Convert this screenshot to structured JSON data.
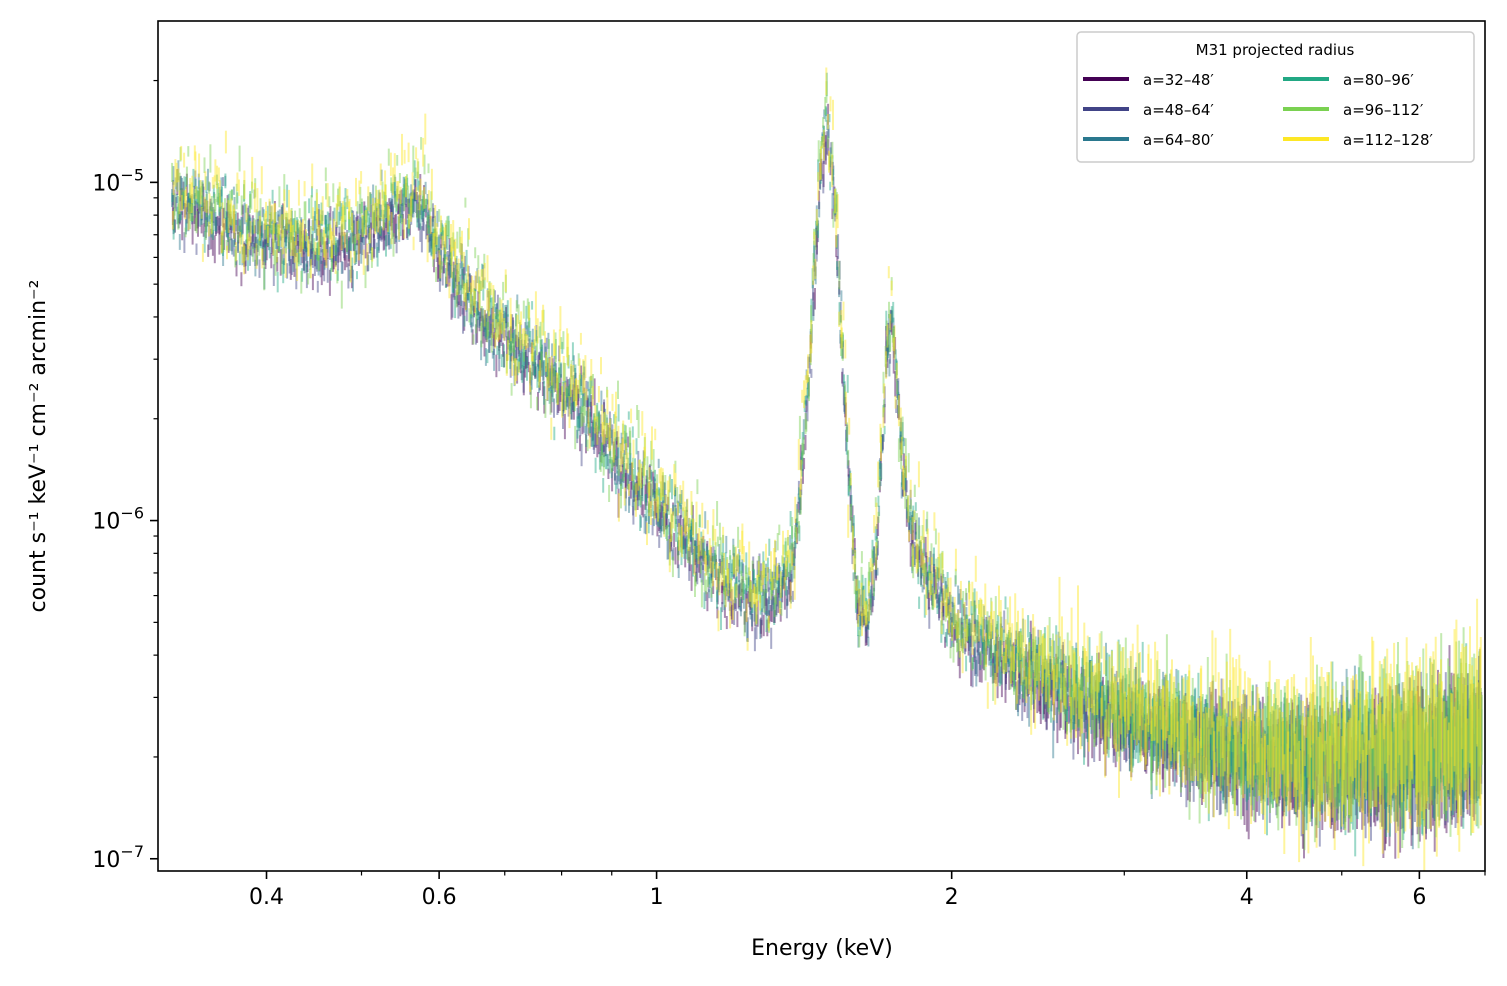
{
  "chart_data": {
    "type": "scatter",
    "xlabel": "Energy (keV)",
    "ylabel": "count s⁻¹ keV⁻¹ cm⁻² arcmin⁻²",
    "xscale": "log",
    "yscale": "log",
    "xlim": [
      0.31,
      7.0
    ],
    "ylim": [
      9.2e-08,
      3e-05
    ],
    "x_ticks": [
      {
        "value": 0.4,
        "label": "0.4"
      },
      {
        "value": 0.6,
        "label": "0.6"
      },
      {
        "value": 1,
        "label": "1"
      },
      {
        "value": 2,
        "label": "2"
      },
      {
        "value": 4,
        "label": "4"
      },
      {
        "value": 6,
        "label": "6"
      }
    ],
    "y_ticks": [
      {
        "value": 1e-07,
        "base": "10",
        "exp": "−7"
      },
      {
        "value": 1e-06,
        "base": "10",
        "exp": "−6"
      },
      {
        "value": 1e-05,
        "base": "10",
        "exp": "−5"
      }
    ],
    "grid": false,
    "legend": {
      "title": "M31 projected radius",
      "placement": "top-right",
      "columns": 2
    },
    "series": [
      {
        "name": "a=32–48′",
        "color": "#440154",
        "noise": 0.3
      },
      {
        "name": "a=48–64′",
        "color": "#414487",
        "noise": 0.26
      },
      {
        "name": "a=64–80′",
        "color": "#2a788e",
        "noise": 0.22
      },
      {
        "name": "a=80–96′",
        "color": "#22a884",
        "noise": 0.24
      },
      {
        "name": "a=96–112′",
        "color": "#7ad151",
        "noise": 0.28
      },
      {
        "name": "a=112–128′",
        "color": "#fde725",
        "noise": 0.34
      }
    ],
    "model_spectrum": {
      "description_points_x": [
        0.32,
        0.35,
        0.4,
        0.45,
        0.5,
        0.55,
        0.58,
        0.6,
        0.65,
        0.7,
        0.8,
        0.9,
        1.0,
        1.1,
        1.2,
        1.3,
        1.38,
        1.42,
        1.46,
        1.49,
        1.52,
        1.56,
        1.6,
        1.64,
        1.68,
        1.72,
        1.74,
        1.78,
        1.82,
        1.9,
        2.0,
        2.2,
        2.5,
        3.0,
        3.5,
        4.0,
        4.5,
        5.0,
        6.0,
        7.0
      ],
      "description_points_y": [
        9e-06,
        8.2e-06,
        7e-06,
        6.6e-06,
        7.2e-06,
        8.6e-06,
        8.8e-06,
        6.5e-06,
        4.5e-06,
        3.6e-06,
        2.6e-06,
        1.7e-06,
        1.15e-06,
        8.2e-07,
        6.5e-07,
        6e-07,
        7.5e-07,
        2e-06,
        8e-06,
        1.7e-05,
        9e-06,
        2e-06,
        6e-07,
        5e-07,
        9e-07,
        3.5e-06,
        4e-06,
        1.6e-06,
        9e-07,
        7e-07,
        5.2e-07,
        4.2e-07,
        3.4e-07,
        2.7e-07,
        2.3e-07,
        2.1e-07,
        2e-07,
        2e-07,
        2.1e-07,
        2.3e-07
      ]
    }
  }
}
